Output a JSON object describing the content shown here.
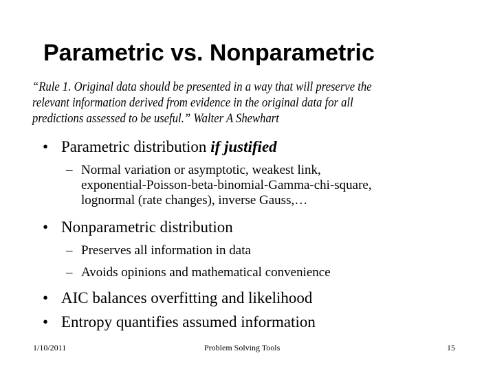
{
  "title": "Parametric vs. Nonparametric",
  "quote": {
    "lines": [
      "“Rule 1. Original data should be presented in a way that will preserve the",
      "relevant information derived from evidence in the original data for all",
      "predictions assessed to be useful.” Walter A Shewhart"
    ]
  },
  "bullets": [
    {
      "text": "Parametric distribution ",
      "emphasis": "if justified",
      "sub": [
        {
          "lines": [
            "Normal variation or asymptotic, weakest link,",
            "exponential-Poisson-beta-binomial-Gamma-chi-square,",
            "lognormal (rate changes), inverse Gauss,…"
          ]
        }
      ]
    },
    {
      "text": "Nonparametric distribution",
      "sub": [
        {
          "lines": [
            "Preserves all information in data"
          ]
        },
        {
          "lines": [
            "Avoids opinions and mathematical convenience"
          ]
        }
      ]
    },
    {
      "text": "AIC balances overfitting and likelihood"
    },
    {
      "text": "Entropy quantifies assumed information"
    }
  ],
  "footer": {
    "date": "1/10/2011",
    "center": "Problem Solving Tools",
    "page": "15"
  },
  "glyphs": {
    "bullet": "•",
    "dash": "–"
  }
}
